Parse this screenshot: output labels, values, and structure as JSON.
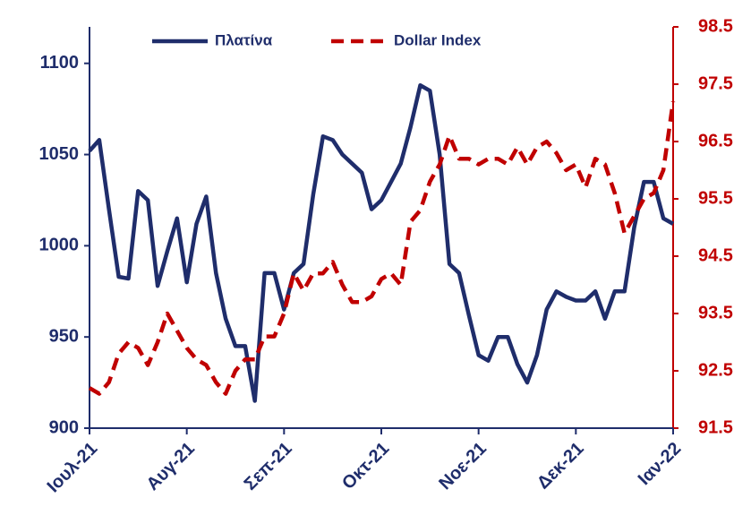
{
  "chart_data": {
    "type": "line",
    "categories": [
      "Ιουλ-21",
      null,
      null,
      null,
      null,
      null,
      null,
      null,
      null,
      null,
      "Αυγ-21",
      null,
      null,
      null,
      null,
      null,
      null,
      null,
      null,
      null,
      "Σεπ-21",
      null,
      null,
      null,
      null,
      null,
      null,
      null,
      null,
      null,
      "Οκτ-21",
      null,
      null,
      null,
      null,
      null,
      null,
      null,
      null,
      null,
      "Νοε-21",
      null,
      null,
      null,
      null,
      null,
      null,
      null,
      null,
      null,
      "Δεκ-21",
      null,
      null,
      null,
      null,
      null,
      null,
      null,
      null,
      null,
      "Ιαν-22"
    ],
    "series": [
      {
        "name": "Πλατίνα",
        "color": "#1f2d6b",
        "axis": "y",
        "values": [
          1052,
          1058,
          1020,
          983,
          982,
          1030,
          1025,
          978,
          997,
          1015,
          980,
          1012,
          1027,
          985,
          960,
          945,
          945,
          915,
          985,
          985,
          965,
          985,
          990,
          1028,
          1060,
          1058,
          1050,
          1045,
          1040,
          1020,
          1025,
          1035,
          1045,
          1065,
          1088,
          1085,
          1050,
          990,
          985,
          962,
          940,
          937,
          950,
          950,
          935,
          925,
          940,
          965,
          975,
          972,
          970,
          970,
          975,
          960,
          975,
          975,
          1010,
          1035,
          1035,
          1015,
          1012
        ]
      },
      {
        "name": "Dollar Index",
        "color": "#c00000",
        "axis": "y2",
        "dashed": true,
        "values": [
          92.2,
          92.1,
          92.3,
          92.8,
          93.0,
          92.9,
          92.6,
          93.0,
          93.5,
          93.2,
          92.9,
          92.7,
          92.6,
          92.3,
          92.1,
          92.5,
          92.7,
          92.7,
          93.1,
          93.1,
          93.5,
          94.2,
          93.9,
          94.2,
          94.2,
          94.4,
          94.0,
          93.7,
          93.7,
          93.8,
          94.1,
          94.2,
          94.0,
          95.1,
          95.3,
          95.8,
          96.1,
          96.6,
          96.2,
          96.2,
          96.1,
          96.2,
          96.2,
          96.1,
          96.4,
          96.1,
          96.4,
          96.5,
          96.3,
          96.0,
          96.1,
          95.7,
          96.2,
          96.1,
          95.6,
          94.9,
          95.2,
          95.5,
          95.6,
          96.0,
          97.2
        ]
      }
    ],
    "ylim": [
      900,
      1120
    ],
    "yticks": [
      900,
      950,
      1000,
      1050,
      1100
    ],
    "y2lim": [
      91.5,
      98.5
    ],
    "y2ticks": [
      91.5,
      92.5,
      93.5,
      94.5,
      95.5,
      96.5,
      97.5,
      98.5
    ],
    "legend": "top"
  }
}
